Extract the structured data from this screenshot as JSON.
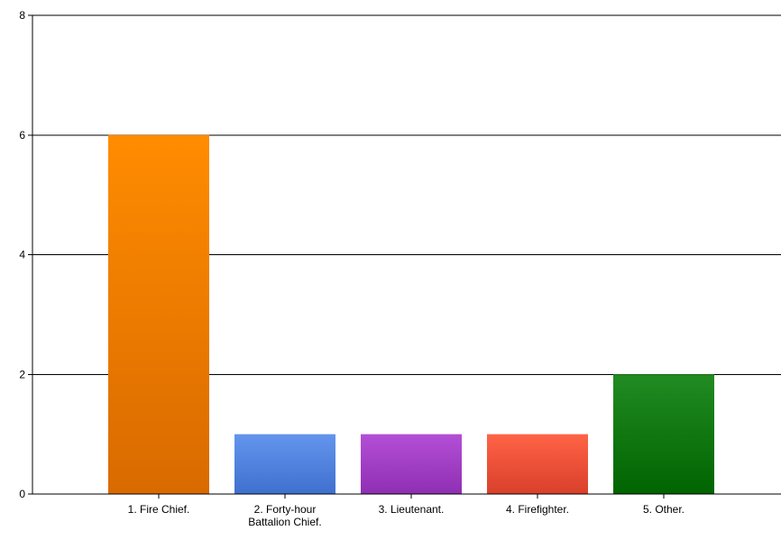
{
  "chart_data": {
    "type": "bar",
    "categories": [
      "1. Fire Chief.",
      "2. Forty-hour Battalion Chief.",
      "3. Lieutenant.",
      "4. Firefighter.",
      "5. Other."
    ],
    "category_lines": [
      [
        "1. Fire Chief."
      ],
      [
        "2. Forty-hour",
        "Battalion Chief."
      ],
      [
        "3. Lieutenant."
      ],
      [
        "4. Firefighter."
      ],
      [
        "5. Other."
      ]
    ],
    "values": [
      6,
      1,
      1,
      1,
      2
    ],
    "colors": [
      [
        "#ff8c00",
        "#d96a00"
      ],
      [
        "#6495ed",
        "#3f70cf"
      ],
      [
        "#b34fd6",
        "#8f2fb3"
      ],
      [
        "#ff6347",
        "#d9402a"
      ],
      [
        "#228b22",
        "#006400"
      ]
    ],
    "title": "",
    "xlabel": "",
    "ylabel": "",
    "ylim": [
      0,
      8
    ],
    "yticks": [
      0,
      2,
      4,
      6,
      8
    ],
    "grid": true,
    "legend": "none"
  }
}
